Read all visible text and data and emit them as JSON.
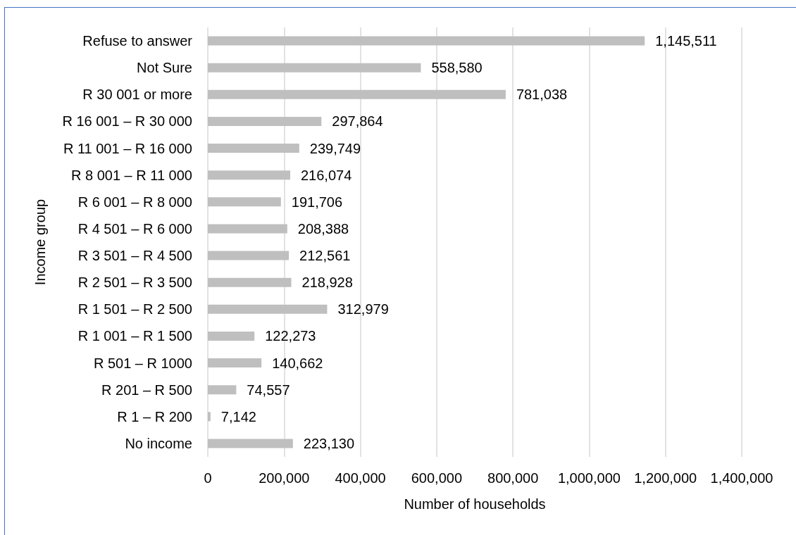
{
  "chart_data": {
    "type": "bar",
    "orientation": "horizontal",
    "xlabel": "Number of households",
    "ylabel": "Income group",
    "categories": [
      "Refuse to answer",
      "Not Sure",
      "R 30 001 or more",
      "R 16 001 – R 30 000",
      "R 11 001 – R 16 000",
      "R 8 001 – R 11 000",
      "R 6 001 – R 8 000",
      "R 4 501 – R 6 000",
      "R 3 501 – R 4 500",
      "R 2 501 – R 3 500",
      "R 1 501 – R 2 500",
      "R 1 001 – R 1 500",
      "R 501 – R 1000",
      "R 201 – R 500",
      "R 1 – R 200",
      "No income"
    ],
    "values": [
      1145511,
      558580,
      781038,
      297864,
      239749,
      216074,
      191706,
      208388,
      212561,
      218928,
      312979,
      122273,
      140662,
      74557,
      7142,
      223130
    ],
    "value_labels": [
      "1,145,511",
      "558,580",
      "781,038",
      "297,864",
      "239,749",
      "216,074",
      "191,706",
      "208,388",
      "212,561",
      "218,928",
      "312,979",
      "122,273",
      "140,662",
      "74,557",
      "7,142",
      "223,130"
    ],
    "color": "#bfbfbf",
    "xlim": [
      0,
      1400000
    ],
    "xticks": [
      0,
      {
        "value": 200000,
        "label": "200,000"
      },
      {
        "value": 400000,
        "label": "400,000"
      },
      {
        "value": 600000,
        "label": "600,000"
      },
      {
        "value": 800000,
        "label": "800,000"
      },
      {
        "value": 1000000,
        "label": "1,000,000"
      },
      {
        "value": 1200000,
        "label": "1,200,000"
      },
      {
        "value": 1400000,
        "label": "1,400,000"
      }
    ],
    "grid": "x"
  }
}
